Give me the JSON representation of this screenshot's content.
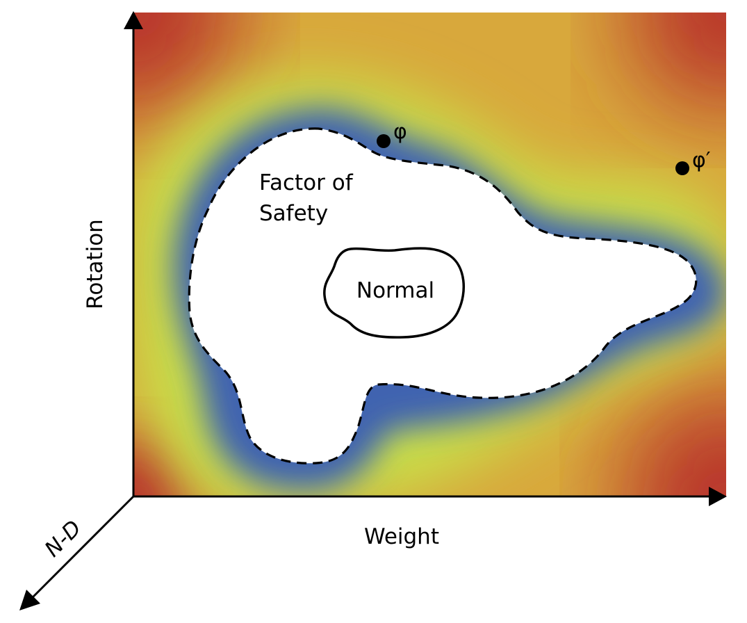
{
  "axes": {
    "x_label": "Weight",
    "y_label": "Rotation",
    "z_label": "N-D"
  },
  "regions": {
    "normal_label": "Normal",
    "safety_label_line1": "Factor of",
    "safety_label_line2": "Safety"
  },
  "points": [
    {
      "label": "φ"
    },
    {
      "label": "φ′"
    }
  ],
  "colors": {
    "far_risk": "#b8322a",
    "mid_risk": "#d8a83c",
    "low_risk": "#c8e048",
    "boundary": "#3f63b0",
    "safe_region": "#ffffff",
    "line": "#000000"
  }
}
